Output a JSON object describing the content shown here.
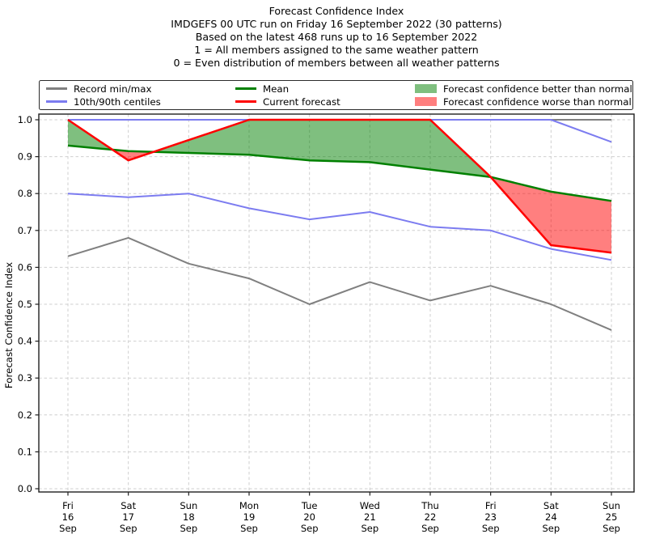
{
  "header": {
    "title": "Forecast Confidence Index",
    "subtitle_run": "IMDGEFS 00 UTC run on Friday 16 September 2022 (30 patterns)",
    "subtitle_basis": "Based on the latest 468 runs up to 16 September 2022",
    "subtitle_scale_one": "1 = All members assigned to the same weather pattern",
    "subtitle_scale_zero": "0 = Even distribution of members between all weather patterns"
  },
  "legend": {
    "items": [
      {
        "label": "Record min/max",
        "swatch": "line",
        "color": "#808080"
      },
      {
        "label": "10th/90th centiles",
        "swatch": "line",
        "color": "#7c7cf0"
      },
      {
        "label": "Mean",
        "swatch": "line",
        "color": "#008000"
      },
      {
        "label": "Current forecast",
        "swatch": "line",
        "color": "#ff0000"
      },
      {
        "label": "Forecast confidence better than normal",
        "swatch": "patch",
        "color": "rgba(0,128,0,0.5)"
      },
      {
        "label": "Forecast confidence worse than normal",
        "swatch": "patch",
        "color": "rgba(255,0,0,0.5)"
      }
    ]
  },
  "chart_data": {
    "type": "line",
    "title": "Forecast Confidence Index",
    "ylabel": "Forecast Confidence Index",
    "ylim": [
      0.0,
      1.0
    ],
    "ytick_step": 0.1,
    "ytick_labels": [
      "0.0",
      "0.1",
      "0.2",
      "0.3",
      "0.4",
      "0.5",
      "0.6",
      "0.7",
      "0.8",
      "0.9",
      "1.0"
    ],
    "grid": true,
    "legend_position": "top",
    "categories": [
      "Fri 16 Sep",
      "Sat 17 Sep",
      "Sun 18 Sep",
      "Mon 19 Sep",
      "Tue 20 Sep",
      "Wed 21 Sep",
      "Thu 22 Sep",
      "Fri 23 Sep",
      "Sat 24 Sep",
      "Sun 25 Sep"
    ],
    "series": [
      {
        "key": "record_min",
        "name": "Record min",
        "color": "#808080",
        "width": 2,
        "values": [
          0.63,
          0.68,
          0.61,
          0.57,
          0.5,
          0.56,
          0.51,
          0.55,
          0.5,
          0.43
        ]
      },
      {
        "key": "record_max",
        "name": "Record max",
        "color": "#808080",
        "width": 2,
        "values": [
          1.0,
          1.0,
          1.0,
          1.0,
          1.0,
          1.0,
          1.0,
          1.0,
          1.0,
          1.0
        ]
      },
      {
        "key": "centile_10",
        "name": "10th centile",
        "color": "#7c7cf0",
        "width": 2,
        "values": [
          0.8,
          0.79,
          0.8,
          0.76,
          0.73,
          0.75,
          0.71,
          0.7,
          0.65,
          0.62
        ]
      },
      {
        "key": "centile_90",
        "name": "90th centile",
        "color": "#7c7cf0",
        "width": 2,
        "values": [
          1.0,
          1.0,
          1.0,
          1.0,
          1.0,
          1.0,
          1.0,
          1.0,
          1.0,
          0.94
        ]
      },
      {
        "key": "mean",
        "name": "Mean",
        "color": "#008000",
        "width": 2.5,
        "values": [
          0.93,
          0.915,
          0.91,
          0.905,
          0.89,
          0.885,
          0.865,
          0.845,
          0.805,
          0.78
        ]
      },
      {
        "key": "current_forecast",
        "name": "Current forecast",
        "color": "#ff0000",
        "width": 2.5,
        "values": [
          1.0,
          0.89,
          0.945,
          1.0,
          1.0,
          1.0,
          1.0,
          0.845,
          0.66,
          0.64
        ]
      }
    ],
    "fills": {
      "between": [
        "current_forecast",
        "mean"
      ],
      "better_color": "#008000",
      "worse_color": "#ff0000",
      "opacity": 0.5,
      "better_label": "Forecast confidence better than normal",
      "worse_label": "Forecast confidence worse than normal"
    }
  }
}
